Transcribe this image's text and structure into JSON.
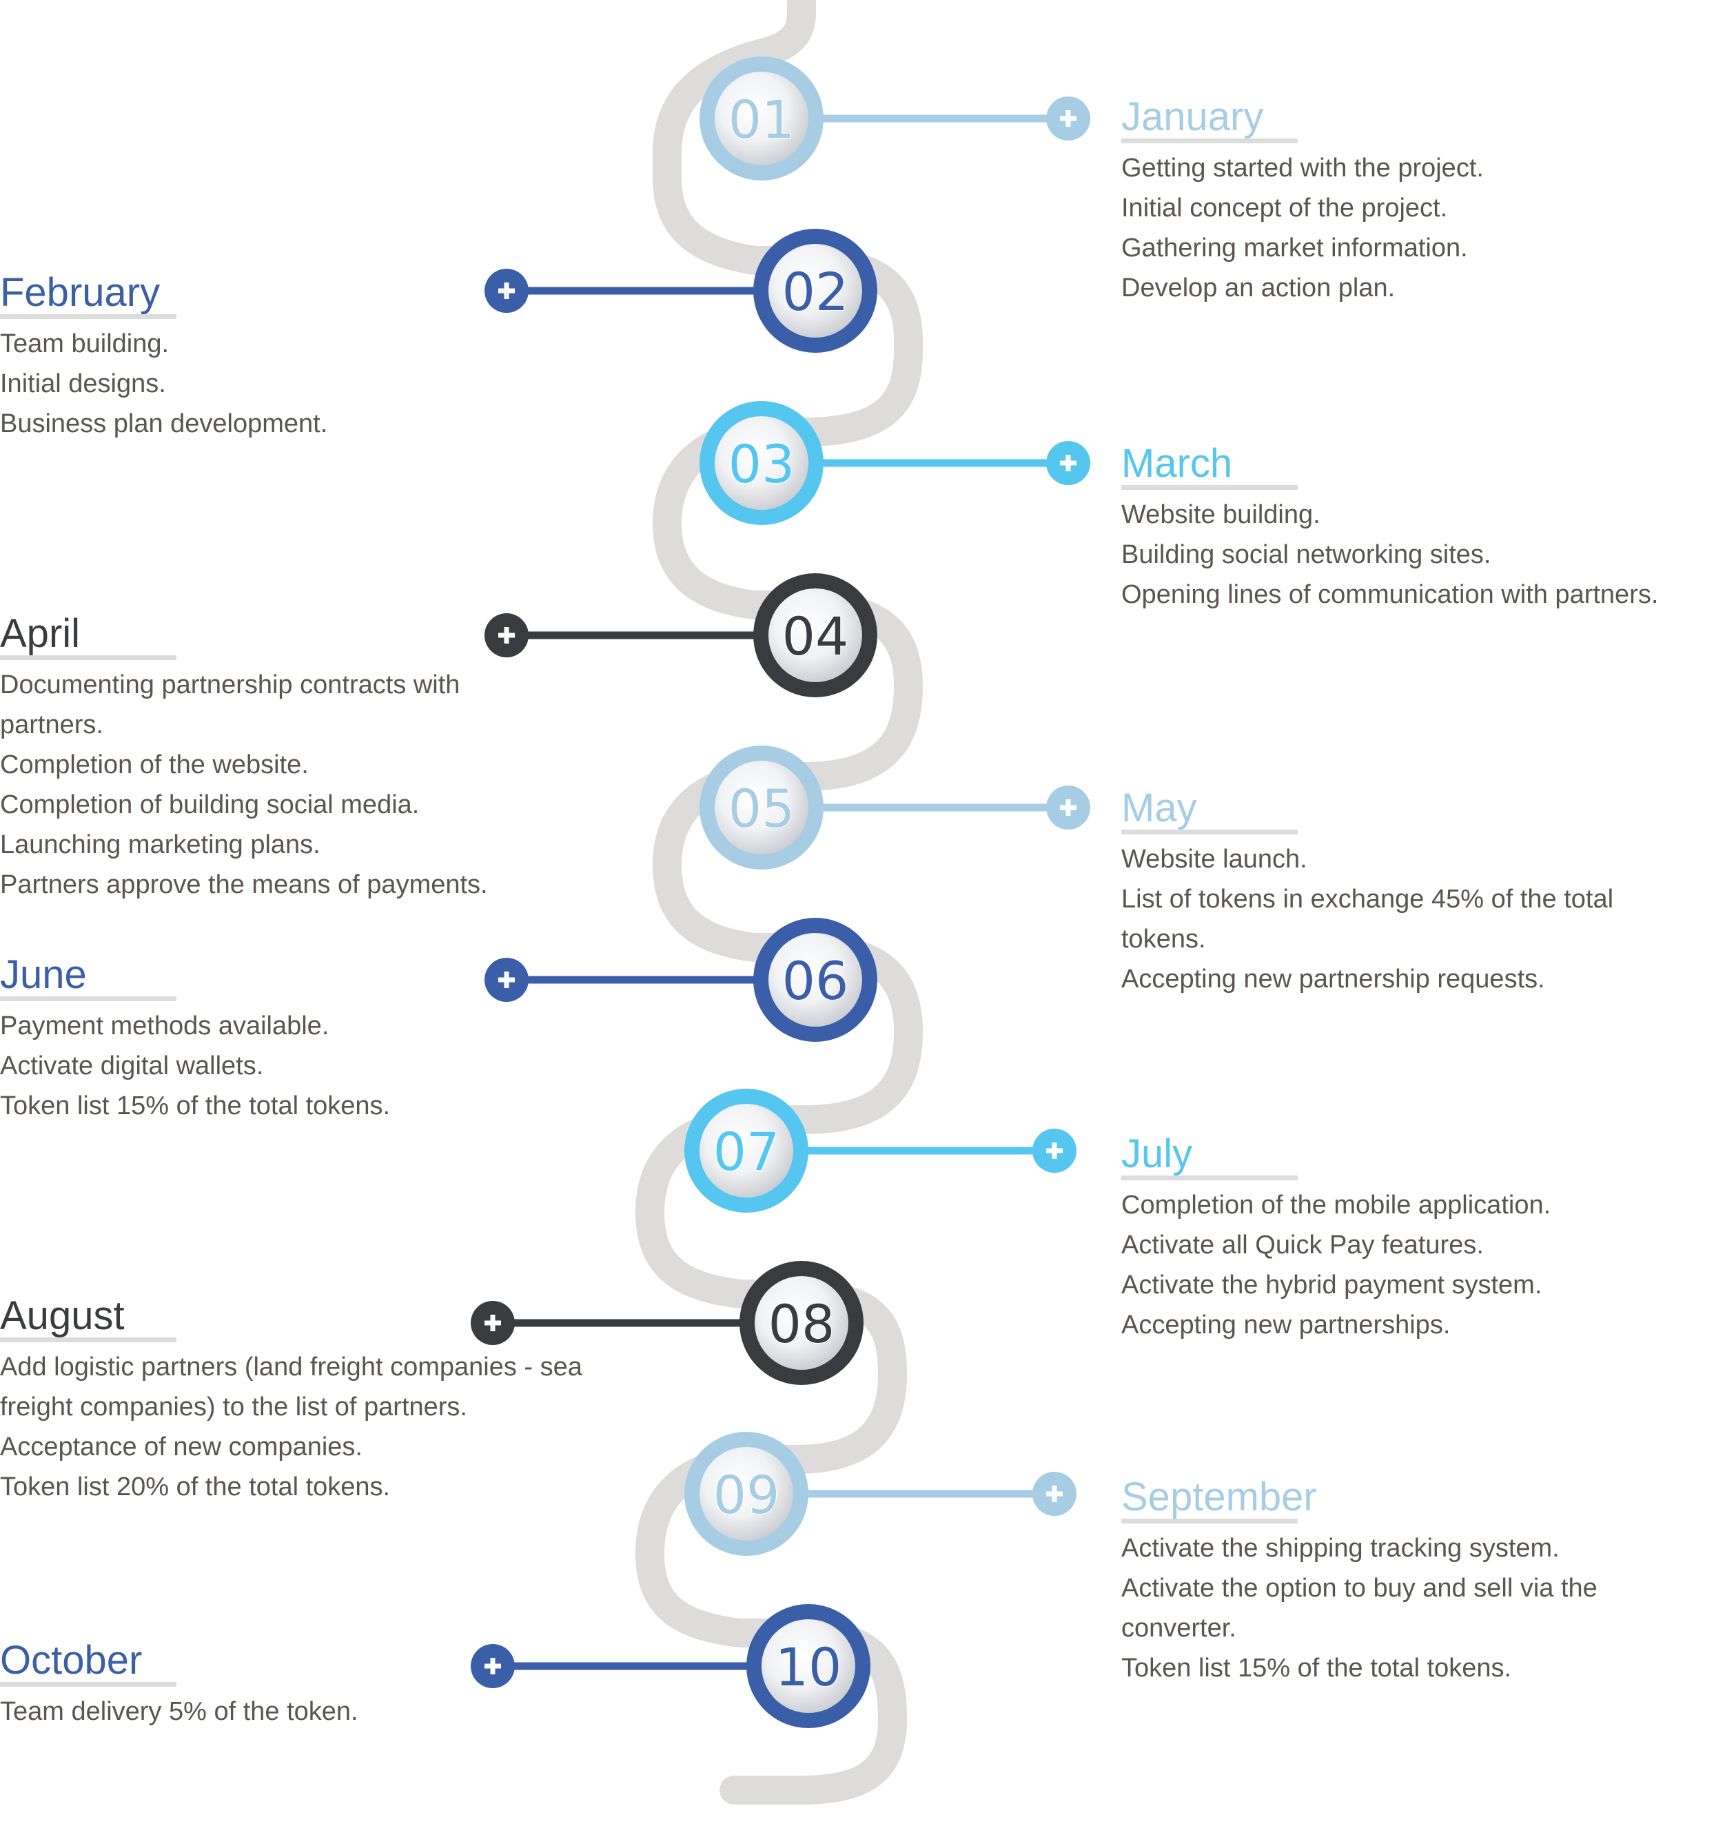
{
  "colors": {
    "path": "#dedcdb",
    "light_blue": "#a6cde4",
    "dark_blue": "#3a5ea8",
    "cyan": "#55c6f0",
    "charcoal": "#3a3b3f",
    "body_text": "#5a5550"
  },
  "milestones": [
    {
      "number": "01",
      "month": "January",
      "side": "right",
      "color": "light_blue",
      "lines": [
        "Getting started with the project.",
        "Initial concept of the project.",
        "Gathering market information.",
        "Develop an action plan."
      ]
    },
    {
      "number": "02",
      "month": "February",
      "side": "left",
      "color": "dark_blue",
      "lines": [
        "Team building.",
        "Initial designs.",
        "Business plan development."
      ]
    },
    {
      "number": "03",
      "month": "March",
      "side": "right",
      "color": "cyan",
      "lines": [
        "Website building.",
        "Building social networking sites.",
        "Opening lines of communication with partners."
      ]
    },
    {
      "number": "04",
      "month": "April",
      "side": "left",
      "color": "charcoal",
      "lines": [
        "Documenting partnership contracts with partners.",
        "Completion of the website.",
        "Completion of building social media.",
        "Launching marketing plans.",
        "Partners approve the means of payments."
      ]
    },
    {
      "number": "05",
      "month": "May",
      "side": "right",
      "color": "light_blue",
      "lines": [
        "Website launch.",
        "List of tokens in exchange 45% of the total tokens.",
        "Accepting new partnership requests."
      ]
    },
    {
      "number": "06",
      "month": "June",
      "side": "left",
      "color": "dark_blue",
      "lines": [
        "Payment methods available.",
        "Activate digital wallets.",
        "Token list 15% of the total tokens."
      ]
    },
    {
      "number": "07",
      "month": "July",
      "side": "right",
      "color": "cyan",
      "lines": [
        "Completion of the mobile application.",
        "Activate all Quick Pay features.",
        "Activate the hybrid payment system.",
        "Accepting new partnerships."
      ]
    },
    {
      "number": "08",
      "month": "August",
      "side": "left",
      "color": "charcoal",
      "lines": [
        "Add logistic partners (land freight companies - sea freight companies) to the list of partners.",
        "Acceptance of new companies.",
        "Token list 20% of the total tokens."
      ]
    },
    {
      "number": "09",
      "month": "September",
      "side": "right",
      "color": "light_blue",
      "lines": [
        "Activate the shipping tracking system.",
        "Activate the option to buy and sell via the converter.",
        "Token list 15% of the total tokens."
      ]
    },
    {
      "number": "10",
      "month": "October",
      "side": "left",
      "color": "dark_blue",
      "lines": [
        "Team delivery 5% of the token."
      ]
    }
  ]
}
